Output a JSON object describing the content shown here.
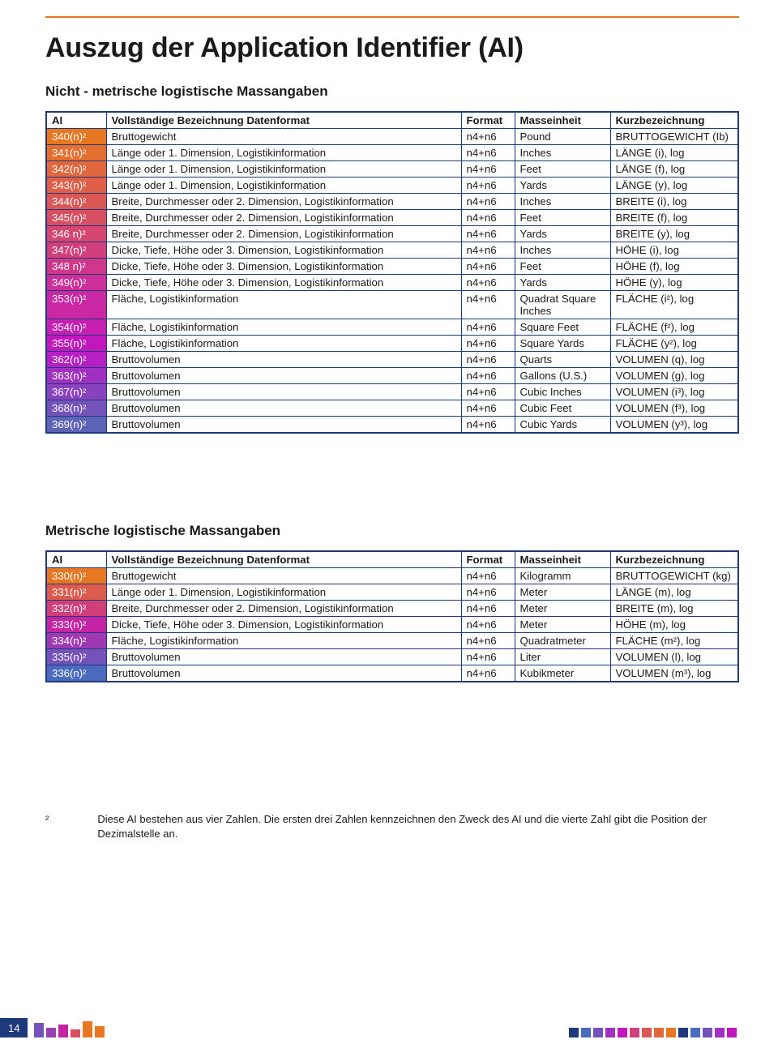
{
  "colors": {
    "rule": "#e87722",
    "tableBorder": "#1f3a7a",
    "pageNumBg": "#1f3a7a",
    "aiGradient": [
      "#e87722",
      "#e56f2f",
      "#e2673c",
      "#df5f49",
      "#db5756",
      "#d84f63",
      "#d54770",
      "#d23f7d",
      "#cf378a",
      "#cc2f97",
      "#c927a4",
      "#c61fb1",
      "#c317be",
      "#b51fc3",
      "#9f30c0",
      "#8941bd",
      "#7352ba",
      "#5d63b7"
    ],
    "aiGradient2": [
      "#e87722",
      "#dc5b4d",
      "#d03f78",
      "#c423a3",
      "#a038b4",
      "#7352ba",
      "#4a6bbd"
    ]
  },
  "title": "Auszug der Application Identifier (AI)",
  "section1_title": "Nicht - metrische logistische Massangaben",
  "section2_title": "Metrische logistische Massangaben",
  "table_headers": {
    "ai": "AI",
    "desc": "Vollständige Bezeichnung Datenformat",
    "format": "Format",
    "unit": "Masseinheit",
    "short": "Kurzbezeichnung"
  },
  "table1_rows": [
    {
      "ai": "340(n)²",
      "desc": "Bruttogewicht",
      "fmt": "n4+n6",
      "unit": "Pound",
      "short": "BRUTTOGEWICHT (Ib)"
    },
    {
      "ai": "341(n)²",
      "desc": "Länge oder 1. Dimension, Logistikinformation",
      "fmt": "n4+n6",
      "unit": "Inches",
      "short": "LÄNGE (i), log"
    },
    {
      "ai": "342(n)²",
      "desc": "Länge oder 1. Dimension, Logistikinformation",
      "fmt": "n4+n6",
      "unit": "Feet",
      "short": "LÄNGE (f), log"
    },
    {
      "ai": "343(n)²",
      "desc": "Länge oder 1. Dimension, Logistikinformation",
      "fmt": "n4+n6",
      "unit": "Yards",
      "short": "LÄNGE (y), log"
    },
    {
      "ai": "344(n)²",
      "desc": "Breite, Durchmesser oder 2. Dimension, Logistikinformation",
      "fmt": "n4+n6",
      "unit": "Inches",
      "short": "BREITE (i), log"
    },
    {
      "ai": "345(n)²",
      "desc": "Breite, Durchmesser oder 2. Dimension, Logistikinformation",
      "fmt": "n4+n6",
      "unit": "Feet",
      "short": "BREITE (f), log"
    },
    {
      "ai": "346 n)²",
      "desc": "Breite, Durchmesser oder 2. Dimension, Logistikinformation",
      "fmt": "n4+n6",
      "unit": "Yards",
      "short": "BREITE (y), log"
    },
    {
      "ai": "347(n)²",
      "desc": "Dicke, Tiefe, Höhe oder 3. Dimension, Logistikinformation",
      "fmt": "n4+n6",
      "unit": "Inches",
      "short": "HÖHE (i), log"
    },
    {
      "ai": "348 n)²",
      "desc": "Dicke, Tiefe, Höhe oder 3. Dimension, Logistikinformation",
      "fmt": "n4+n6",
      "unit": "Feet",
      "short": "HÖHE (f), log"
    },
    {
      "ai": "349(n)²",
      "desc": "Dicke, Tiefe, Höhe oder 3. Dimension, Logistikinformation",
      "fmt": "n4+n6",
      "unit": "Yards",
      "short": "HÖHE (y), log"
    },
    {
      "ai": "353(n)²",
      "desc": "Fläche, Logistikinformation",
      "fmt": "n4+n6",
      "unit": "Quadrat Square Inches",
      "short": "FLÄCHE (i²), log"
    },
    {
      "ai": "354(n)²",
      "desc": "Fläche, Logistikinformation",
      "fmt": "n4+n6",
      "unit": "Square Feet",
      "short": "FLÄCHE (f²), log"
    },
    {
      "ai": "355(n)²",
      "desc": "Fläche, Logistikinformation",
      "fmt": "n4+n6",
      "unit": "Square Yards",
      "short": "FLÄCHE (y²), log"
    },
    {
      "ai": "362(n)²",
      "desc": "Bruttovolumen",
      "fmt": "n4+n6",
      "unit": "Quarts",
      "short": "VOLUMEN (q), log"
    },
    {
      "ai": "363(n)²",
      "desc": "Bruttovolumen",
      "fmt": "n4+n6",
      "unit": "Gallons (U.S.)",
      "short": "VOLUMEN (g), log"
    },
    {
      "ai": "367(n)²",
      "desc": "Bruttovolumen",
      "fmt": "n4+n6",
      "unit": "Cubic Inches",
      "short": "VOLUMEN (i³), log"
    },
    {
      "ai": "368(n)²",
      "desc": "Bruttovolumen",
      "fmt": "n4+n6",
      "unit": "Cubic Feet",
      "short": "VOLUMEN (f³), log"
    },
    {
      "ai": "369(n)²",
      "desc": "Bruttovolumen",
      "fmt": "n4+n6",
      "unit": "Cubic Yards",
      "short": "VOLUMEN (y³), log"
    }
  ],
  "table2_rows": [
    {
      "ai": "330(n)²",
      "desc": "Bruttogewicht",
      "fmt": "n4+n6",
      "unit": "Kilogramm",
      "short": "BRUTTOGEWICHT (kg)"
    },
    {
      "ai": "331(n)²",
      "desc": "Länge oder 1. Dimension, Logistikinformation",
      "fmt": "n4+n6",
      "unit": "Meter",
      "short": "LÄNGE (m), log"
    },
    {
      "ai": "332(n)²",
      "desc": "Breite, Durchmesser oder 2. Dimension, Logistikinformation",
      "fmt": "n4+n6",
      "unit": "Meter",
      "short": "BREITE (m), log"
    },
    {
      "ai": "333(n)²",
      "desc": "Dicke, Tiefe, Höhe oder 3. Dimension, Logistikinformation",
      "fmt": "n4+n6",
      "unit": "Meter",
      "short": "HÖHE (m), log"
    },
    {
      "ai": "334(n)²",
      "desc": "Fläche, Logistikinformation",
      "fmt": "n4+n6",
      "unit": "Quadratmeter",
      "short": "FLÄCHE (m²), log"
    },
    {
      "ai": "335(n)²",
      "desc": "Bruttovolumen",
      "fmt": "n4+n6",
      "unit": "Liter",
      "short": "VOLUMEN (l), log"
    },
    {
      "ai": "336(n)²",
      "desc": "Bruttovolumen",
      "fmt": "n4+n6",
      "unit": "Kubikmeter",
      "short": "VOLUMEN (m³), log"
    }
  ],
  "footnote_marker": "²",
  "footnote_text": "Diese AI bestehen aus vier Zahlen. Die ersten drei Zahlen kennzeichnen den Zweck des AI und die vierte Zahl gibt die Position der Dezimalstelle an.",
  "page_number": "14",
  "deco_left": [
    {
      "c": "#7352ba",
      "h": 18
    },
    {
      "c": "#9941b0",
      "h": 12
    },
    {
      "c": "#c423a3",
      "h": 16
    },
    {
      "c": "#d84f63",
      "h": 10
    },
    {
      "c": "#e87722",
      "h": 20
    },
    {
      "c": "#e87722",
      "h": 14
    }
  ],
  "deco_right": [
    {
      "c": "#1f3a7a",
      "h": 12
    },
    {
      "c": "#4a6bbd",
      "h": 12
    },
    {
      "c": "#7352ba",
      "h": 12
    },
    {
      "c": "#9f30c0",
      "h": 12
    },
    {
      "c": "#c317be",
      "h": 12
    },
    {
      "c": "#d23f7d",
      "h": 12
    },
    {
      "c": "#db5756",
      "h": 12
    },
    {
      "c": "#e2673c",
      "h": 12
    },
    {
      "c": "#e87722",
      "h": 12
    },
    {
      "c": "#1f3a7a",
      "h": 12
    },
    {
      "c": "#4a6bbd",
      "h": 12
    },
    {
      "c": "#7352ba",
      "h": 12
    },
    {
      "c": "#9f30c0",
      "h": 12
    },
    {
      "c": "#c317be",
      "h": 12
    }
  ]
}
